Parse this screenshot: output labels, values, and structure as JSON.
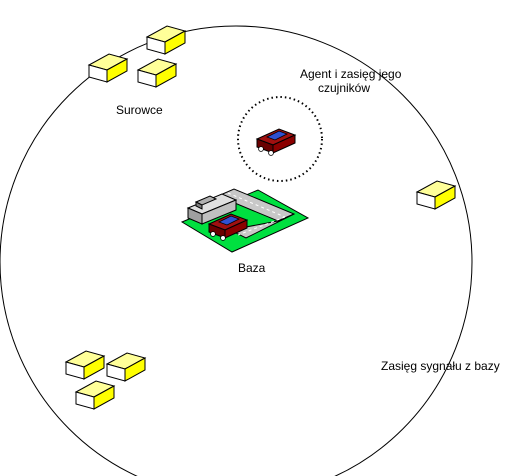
{
  "labels": {
    "resources": "Surowce",
    "agent_line1": "Agent i zasięg jego",
    "agent_line2": "czujników",
    "base": "Baza",
    "signal_range": "Zasięg sygnału z bazy"
  },
  "colors": {
    "outline": "#000000",
    "crate_top": "#ffff99",
    "crate_front": "#ffffff",
    "crate_side": "#ffff00",
    "grass": "#00e040",
    "road": "#c8c8c8",
    "car_body": "#8b0000",
    "car_roof": "#3050d0"
  },
  "icons": {
    "crate": "crate-icon",
    "car": "car-icon",
    "base": "base-building-icon"
  }
}
